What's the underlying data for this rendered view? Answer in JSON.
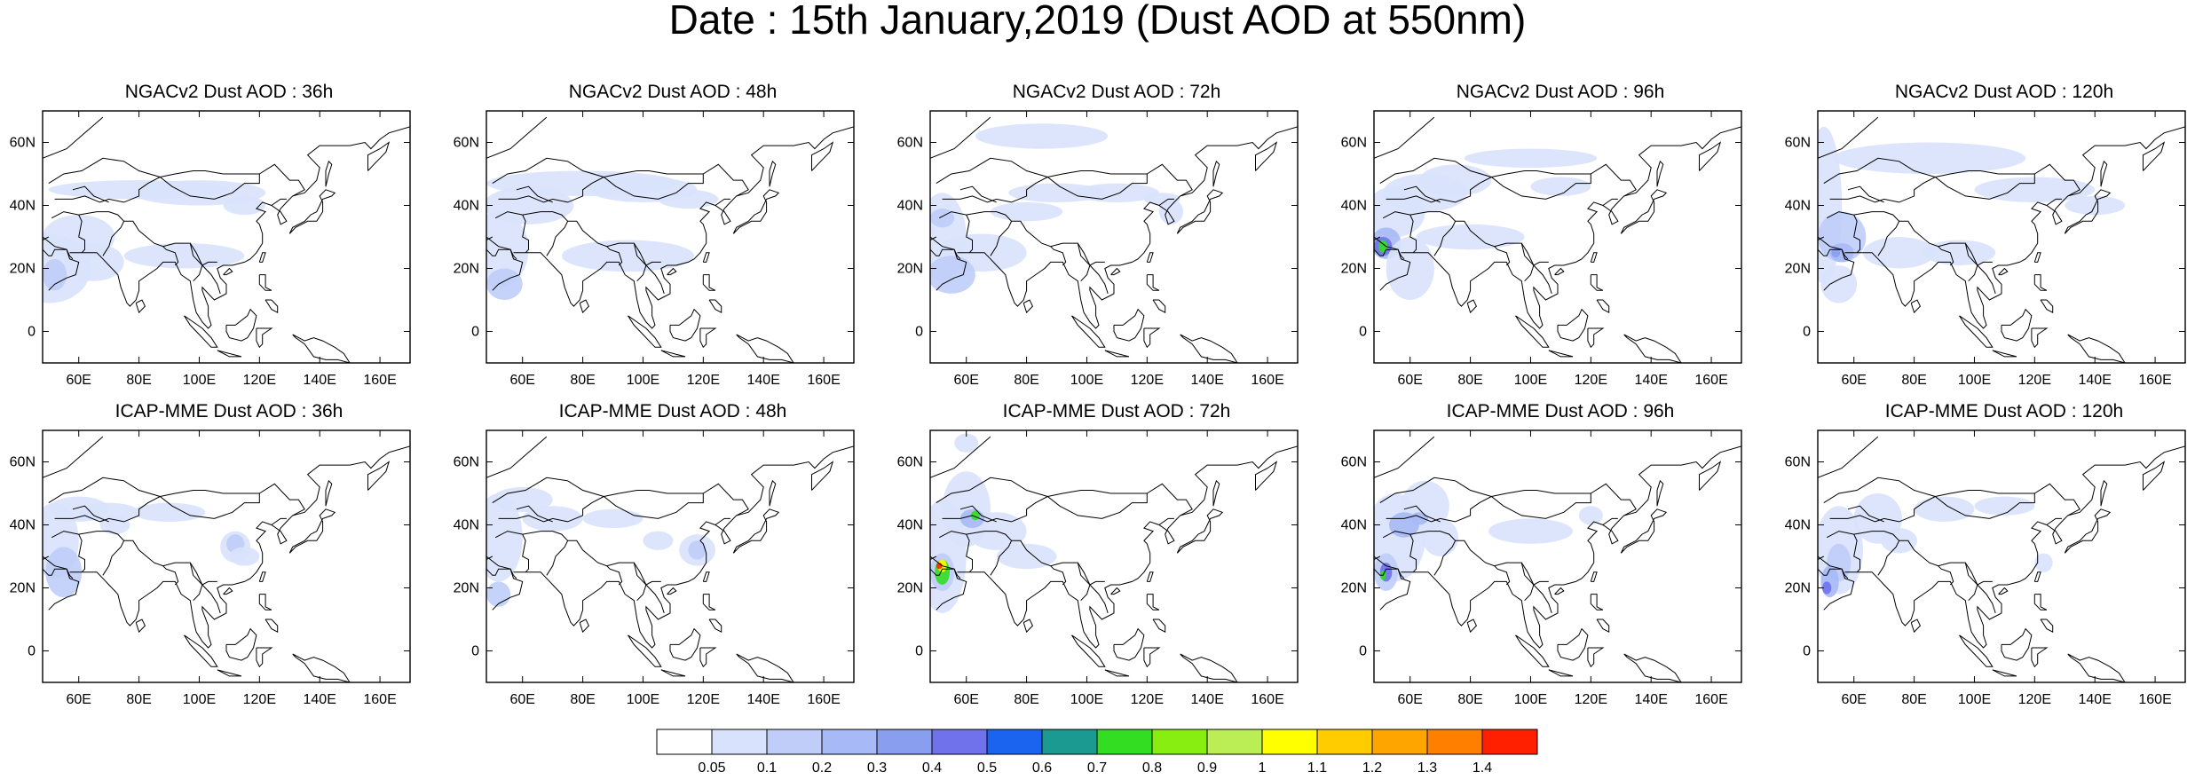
{
  "title": "Date : 15th January,2019 (Dust AOD at 550nm)",
  "x_tick_labels": [
    "60E",
    "80E",
    "100E",
    "120E",
    "140E",
    "160E"
  ],
  "x_tick_values": [
    60,
    80,
    100,
    120,
    140,
    160
  ],
  "y_tick_labels": [
    "60N",
    "40N",
    "20N",
    "0"
  ],
  "y_tick_values": [
    60,
    40,
    20,
    0
  ],
  "lon_range": [
    48,
    170
  ],
  "lat_range": [
    -10,
    70
  ],
  "panels": [
    {
      "title": "NGACv2 Dust AOD : 36h"
    },
    {
      "title": "NGACv2 Dust AOD : 48h"
    },
    {
      "title": "NGACv2 Dust AOD : 72h"
    },
    {
      "title": "NGACv2 Dust AOD : 96h"
    },
    {
      "title": "NGACv2 Dust AOD : 120h"
    },
    {
      "title": "ICAP-MME Dust AOD : 36h"
    },
    {
      "title": "ICAP-MME Dust AOD : 48h"
    },
    {
      "title": "ICAP-MME Dust AOD : 72h"
    },
    {
      "title": "ICAP-MME Dust AOD : 96h"
    },
    {
      "title": "ICAP-MME Dust AOD : 120h"
    }
  ],
  "colorbar": {
    "labels": [
      "0.05",
      "0.1",
      "0.2",
      "0.3",
      "0.4",
      "0.5",
      "0.6",
      "0.7",
      "0.8",
      "0.9",
      "1",
      "1.1",
      "1.2",
      "1.3",
      "1.4"
    ],
    "colors": [
      "#ffffff",
      "#d8e2fc",
      "#bfcdf8",
      "#a7b9f6",
      "#8a9ef0",
      "#6f72ea",
      "#1a64f0",
      "#1a9a90",
      "#33dd22",
      "#88ee11",
      "#bbee55",
      "#ffff00",
      "#ffcc00",
      "#ffa500",
      "#ff7f00",
      "#ff2000"
    ]
  }
}
